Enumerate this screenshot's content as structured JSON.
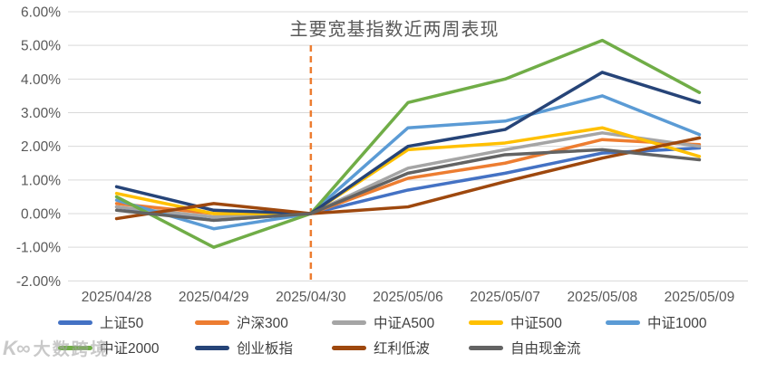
{
  "chart_data": {
    "type": "line",
    "title": "主要宽基指数近两周表现",
    "x": [
      "2025/04/28",
      "2025/04/29",
      "2025/04/30",
      "2025/05/06",
      "2025/05/07",
      "2025/05/08",
      "2025/05/09"
    ],
    "y_tick_labels": [
      "6.00%",
      "5.00%",
      "4.00%",
      "3.00%",
      "2.00%",
      "1.00%",
      "0.00%",
      "-1.00%",
      "-2.00%"
    ],
    "ylim": [
      -2,
      6
    ],
    "y_unit": "percent",
    "grid": true,
    "gridline_color": "#D9D9D9",
    "axis_text_color": "#595959",
    "title_color": "#595959",
    "legend_position": "bottom",
    "reference_line": {
      "x": "2025/04/30",
      "style": "dashed",
      "color": "#ED7D31"
    },
    "series": [
      {
        "name": "上证50",
        "color": "#4472C4",
        "values": [
          0.2,
          -0.2,
          0,
          0.7,
          1.2,
          1.8,
          1.95
        ]
      },
      {
        "name": "沪深300",
        "color": "#ED7D31",
        "values": [
          0.3,
          0.0,
          0,
          1.05,
          1.5,
          2.2,
          2.05
        ]
      },
      {
        "name": "中证A500",
        "color": "#A5A5A5",
        "values": [
          0.2,
          -0.1,
          0,
          1.35,
          1.9,
          2.4,
          2.0
        ]
      },
      {
        "name": "中证500",
        "color": "#FFC000",
        "values": [
          0.6,
          0.0,
          0,
          1.9,
          2.1,
          2.55,
          1.7
        ]
      },
      {
        "name": "中证1000",
        "color": "#5B9BD5",
        "values": [
          0.4,
          -0.45,
          0,
          2.55,
          2.75,
          3.5,
          2.35
        ]
      },
      {
        "name": "中证2000",
        "color": "#70AD47",
        "values": [
          0.5,
          -1.0,
          0,
          3.3,
          4.0,
          5.15,
          3.6
        ]
      },
      {
        "name": "创业板指",
        "color": "#264478",
        "values": [
          0.8,
          0.1,
          0,
          2.0,
          2.5,
          4.2,
          3.3
        ]
      },
      {
        "name": "红利低波",
        "color": "#9E480E",
        "values": [
          -0.15,
          0.3,
          0,
          0.2,
          0.95,
          1.65,
          2.25
        ]
      },
      {
        "name": "自由现金流",
        "color": "#636363",
        "values": [
          0.1,
          -0.2,
          0,
          1.2,
          1.75,
          1.9,
          1.6
        ]
      }
    ],
    "legend_rows": [
      [
        0,
        1,
        2,
        3,
        4
      ],
      [
        5,
        6,
        7,
        8
      ]
    ]
  },
  "watermark": {
    "logo": "K∞",
    "text": "大数跨境"
  }
}
